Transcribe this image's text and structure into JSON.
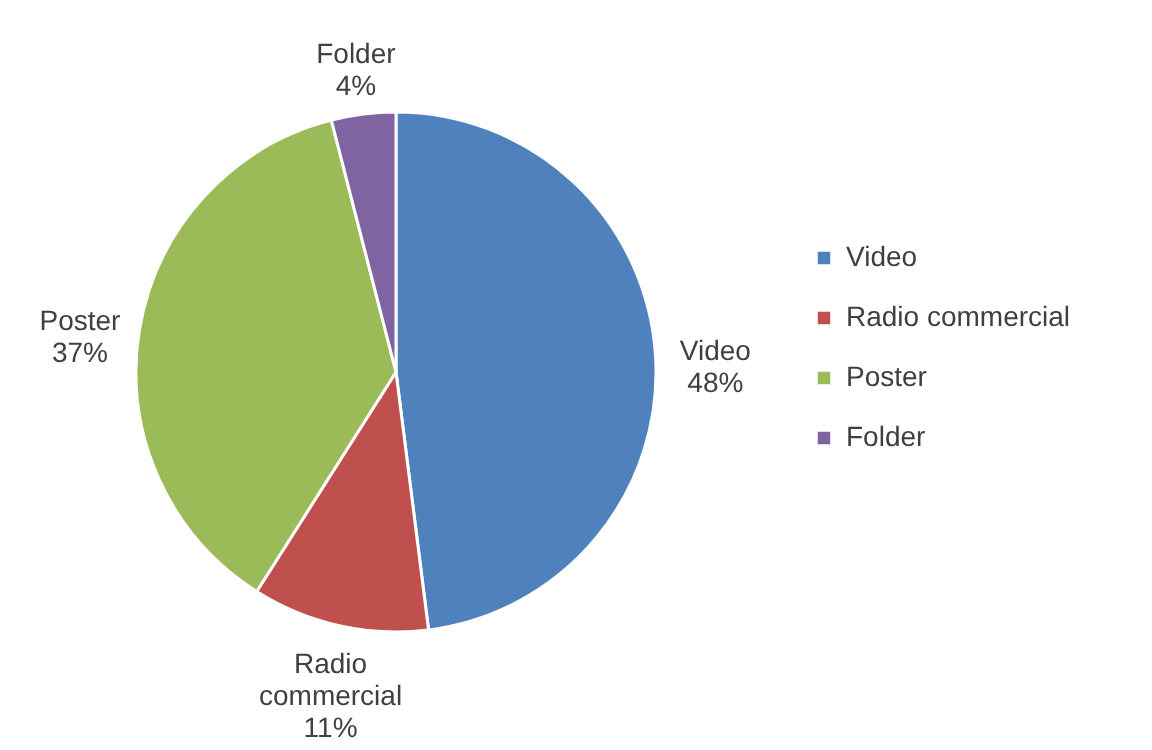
{
  "chart_data": {
    "type": "pie",
    "categories": [
      "Video",
      "Radio commercial",
      "Poster",
      "Folder"
    ],
    "values": [
      48,
      11,
      37,
      4
    ],
    "colors": [
      "#4f81bd",
      "#c0504d",
      "#9bbb59",
      "#8064a2"
    ],
    "value_labels": [
      "48%",
      "11%",
      "37%",
      "4%"
    ],
    "legend": "right"
  }
}
